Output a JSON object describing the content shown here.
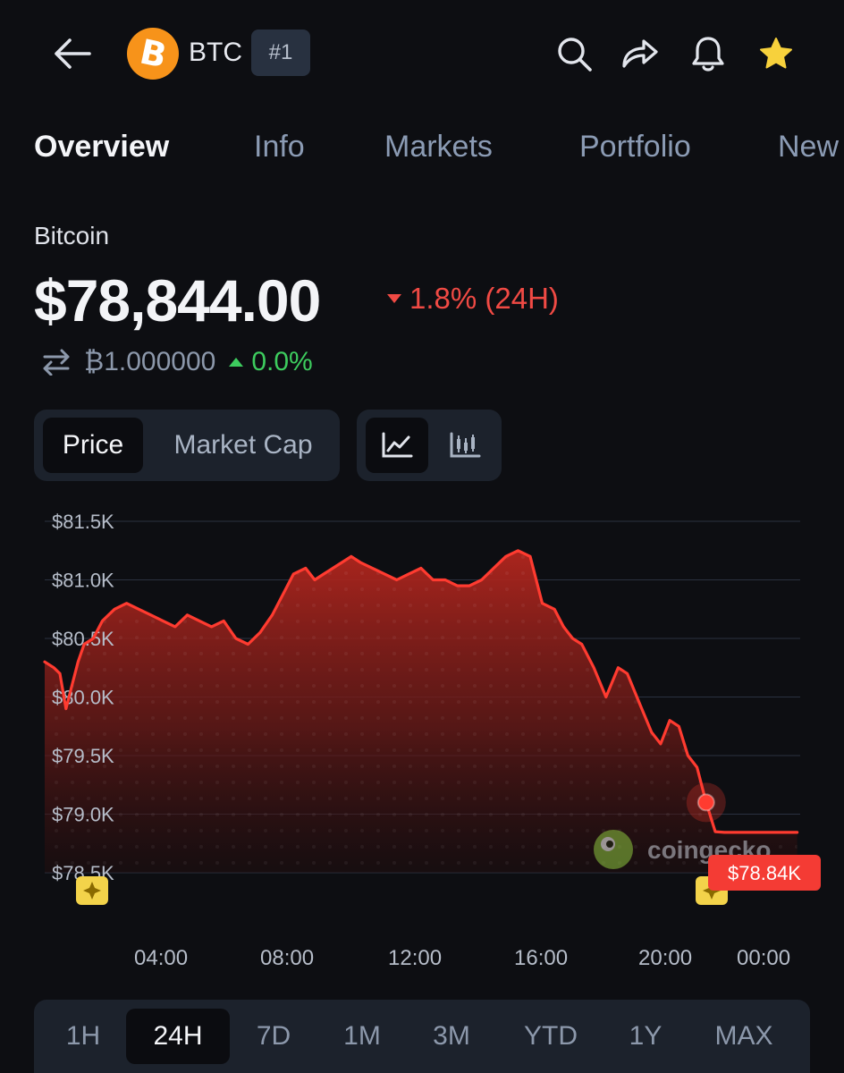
{
  "header": {
    "symbol": "BTC",
    "rank": "#1",
    "coin_icon": "bitcoin-logo-icon",
    "colors": {
      "coin": "#f7931a",
      "favorite": "#f7d13c"
    }
  },
  "tabs": [
    "Overview",
    "Info",
    "Markets",
    "Portfolio",
    "New"
  ],
  "coin": {
    "name": "Bitcoin",
    "price": "$78,844.00",
    "change_24h": "1.8% (24H)",
    "btc_value": "₿1.000000",
    "btc_change": "0.0%",
    "colors": {
      "down": "#f04a44",
      "up": "#3dcc5e"
    }
  },
  "toggles": {
    "price": "Price",
    "market_cap": "Market Cap"
  },
  "chart_data": {
    "type": "area",
    "y_ticks": [
      "$81.5K",
      "$81.0K",
      "$80.5K",
      "$80.0K",
      "$79.5K",
      "$79.0K",
      "$78.5K"
    ],
    "y_tick_values": [
      81500,
      81000,
      80500,
      80000,
      79500,
      79000,
      78500
    ],
    "ylim": [
      78500,
      81500
    ],
    "x_ticks": [
      "04:00",
      "08:00",
      "12:00",
      "16:00",
      "20:00",
      "00:00"
    ],
    "x_tick_hours": [
      4,
      8,
      12,
      16,
      20,
      24
    ],
    "xlim_hours": [
      0.0,
      24.9
    ],
    "grid": true,
    "series": [
      {
        "hours": [
          0.0,
          0.3,
          0.5,
          0.7,
          0.9,
          1.1,
          1.3,
          1.6,
          1.9,
          2.3,
          2.7,
          3.1,
          3.5,
          3.9,
          4.3,
          4.7,
          5.1,
          5.5,
          5.9,
          6.3,
          6.7,
          7.1,
          7.5,
          7.9,
          8.2,
          8.6,
          8.9,
          9.2,
          9.5,
          9.8,
          10.1,
          10.4,
          10.8,
          11.2,
          11.6,
          12.0,
          12.4,
          12.8,
          13.2,
          13.6,
          14.0,
          14.4,
          14.8,
          15.2,
          15.6,
          16.0,
          16.4,
          16.8,
          17.1,
          17.4,
          17.7,
          18.1,
          18.5,
          18.9,
          19.2,
          19.6,
          20.0,
          20.3,
          20.6,
          20.9,
          21.2,
          21.5,
          21.8,
          22.1,
          22.4,
          22.7,
          23.0,
          23.3,
          23.6,
          23.9,
          24.2,
          24.4,
          24.6,
          24.8
        ],
        "values": [
          80300,
          80250,
          80200,
          79900,
          80100,
          80300,
          80450,
          80500,
          80650,
          80750,
          80800,
          80750,
          80700,
          80650,
          80600,
          80700,
          80650,
          80600,
          80650,
          80500,
          80450,
          80550,
          80700,
          80900,
          81050,
          81100,
          81000,
          81050,
          81100,
          81150,
          81200,
          81150,
          81100,
          81050,
          81000,
          81050,
          81100,
          81000,
          81000,
          80950,
          80950,
          81000,
          81100,
          81200,
          81250,
          81200,
          80800,
          80750,
          80600,
          80500,
          80450,
          80250,
          80000,
          80250,
          80200,
          79950,
          79700,
          79600,
          79800,
          79750,
          79500,
          79400,
          79100,
          78850,
          78844,
          78844,
          78844,
          78844,
          78844,
          78844,
          78844,
          78844,
          78844,
          78844
        ]
      }
    ],
    "last_label": "$78.84K",
    "line_color": "#ff3b30",
    "watermark": "coingecko"
  },
  "ranges": [
    "1H",
    "24H",
    "7D",
    "1M",
    "3M",
    "YTD",
    "1Y",
    "MAX"
  ],
  "active_range": "24H"
}
